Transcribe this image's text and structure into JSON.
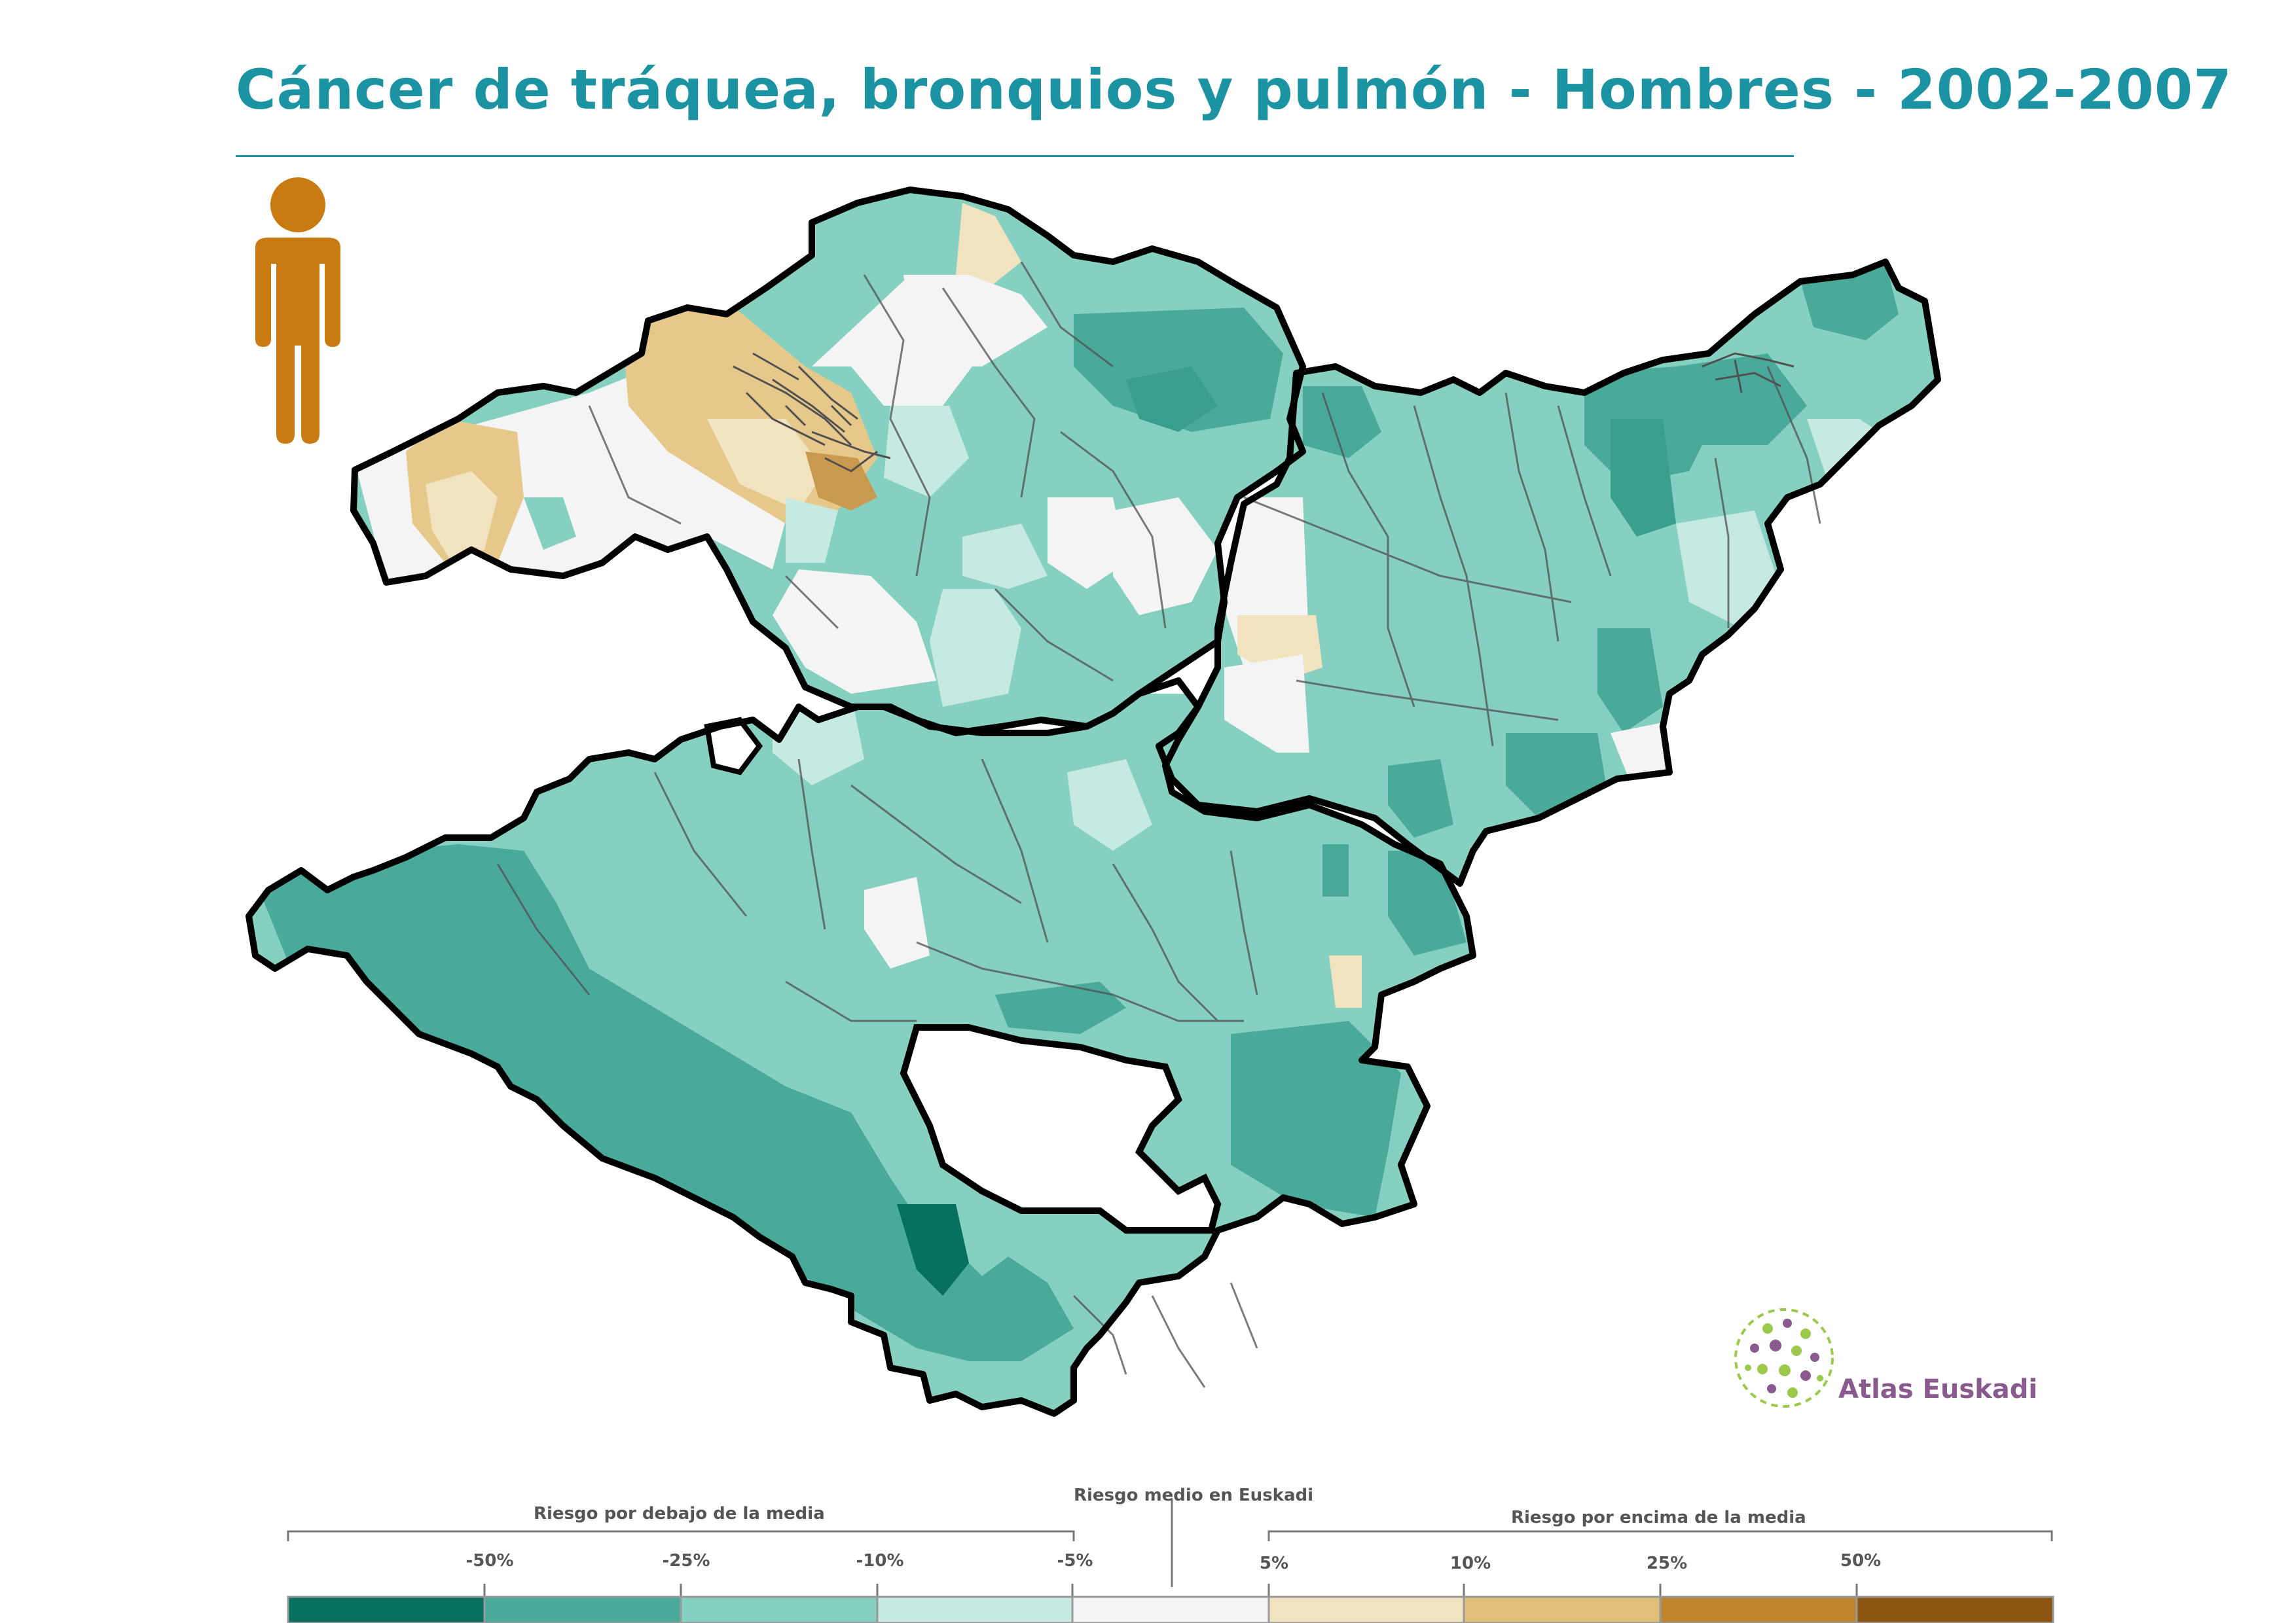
{
  "title": "Cáncer de tráquea, bronquios y pulmón - Hombres - 2002-2007",
  "icon": "male-person-icon",
  "colors": {
    "accent": "#1b93a3",
    "person": "#c97a10",
    "border": "#000000",
    "muni_line": "#505050",
    "classes": [
      "#08705f",
      "#4aaa9a",
      "#86d0c2",
      "#c6e9e1",
      "#f4f4f4",
      "#f2e3c0",
      "#dfbf7a",
      "#c0832e",
      "#8c5512"
    ]
  },
  "legend": {
    "below_label": "Riesgo por debajo de la media",
    "mean_label": "Riesgo medio en Euskadi",
    "above_label": "Riesgo por encima de la media",
    "ticks": [
      "-50%",
      "-25%",
      "-10%",
      "-5%",
      "5%",
      "10%",
      "25%",
      "50%"
    ]
  },
  "logo": {
    "text": "Atlas Euskadi"
  }
}
